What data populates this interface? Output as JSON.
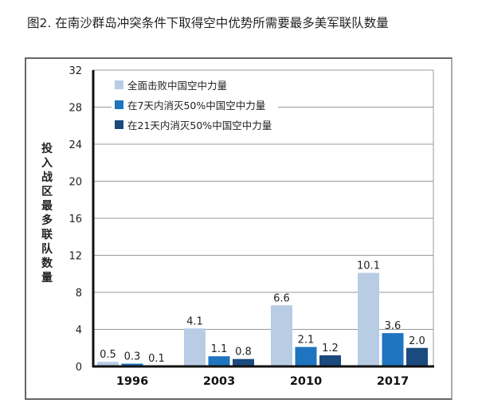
{
  "title": "图2. 在南沙群岛冲突条件下取得空中优势所需要最多美军联队数量",
  "chart_data": {
    "type": "bar",
    "title": "图2. 在南沙群岛冲突条件下取得空中优势所需要最多美军联队数量",
    "xlabel": "",
    "ylabel": "投入战区最多联队数量",
    "categories": [
      "1996",
      "2003",
      "2010",
      "2017"
    ],
    "ylim": [
      0,
      32
    ],
    "yticks": [
      "0",
      "4",
      "8",
      "12",
      "16",
      "20",
      "24",
      "28",
      "32"
    ],
    "grid": true,
    "legend_position": "top-left",
    "series": [
      {
        "name": "全面击败中国空中力量",
        "values": [
          0.5,
          4.1,
          6.6,
          10.1
        ],
        "labels": [
          "0.5",
          "4.1",
          "6.6",
          "10.1"
        ],
        "color": "#b8cce4"
      },
      {
        "name": "在7天内消灭50%中国空中力量",
        "values": [
          0.3,
          1.1,
          2.1,
          3.6
        ],
        "labels": [
          "0.3",
          "1.1",
          "2.1",
          "3.6"
        ],
        "color": "#1f74bf"
      },
      {
        "name": "在21天内消灭50%中国空中力量",
        "values": [
          0.1,
          0.8,
          1.2,
          2.0
        ],
        "labels": [
          "0.1",
          "0.8",
          "1.2",
          "2.0"
        ],
        "color": "#1b4a7e"
      }
    ]
  }
}
